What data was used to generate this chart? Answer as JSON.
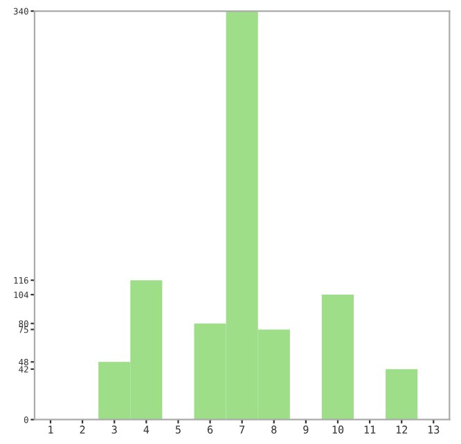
{
  "chart_data": {
    "type": "bar",
    "categories": [
      "1",
      "2",
      "3",
      "4",
      "5",
      "6",
      "7",
      "8",
      "9",
      "10",
      "11",
      "12",
      "13"
    ],
    "values": [
      0,
      0,
      48,
      116,
      0,
      80,
      340,
      75,
      0,
      104,
      0,
      42,
      0
    ],
    "color": "#9ede88",
    "ylim": [
      0,
      340
    ],
    "yticks": [
      0,
      42,
      48,
      75,
      80,
      104,
      116,
      340
    ],
    "grid": false
  }
}
